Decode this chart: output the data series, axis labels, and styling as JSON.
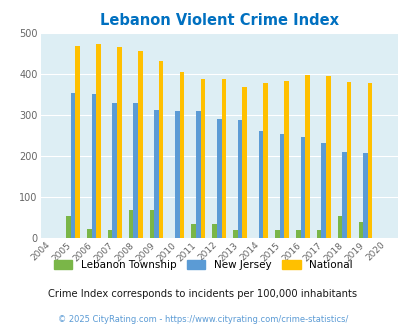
{
  "title": "Lebanon Violent Crime Index",
  "years": [
    2004,
    2005,
    2006,
    2007,
    2008,
    2009,
    2010,
    2011,
    2012,
    2013,
    2014,
    2015,
    2016,
    2017,
    2018,
    2019,
    2020
  ],
  "lebanon": [
    0,
    52,
    20,
    18,
    68,
    68,
    0,
    33,
    33,
    18,
    0,
    18,
    18,
    18,
    52,
    38,
    0
  ],
  "new_jersey": [
    0,
    354,
    350,
    328,
    329,
    311,
    309,
    309,
    291,
    287,
    260,
    254,
    247,
    230,
    210,
    207,
    0
  ],
  "national": [
    0,
    469,
    474,
    467,
    455,
    432,
    405,
    387,
    387,
    368,
    377,
    383,
    397,
    394,
    380,
    379,
    0
  ],
  "lebanon_color": "#7ab648",
  "nj_color": "#5b9bd5",
  "national_color": "#ffc000",
  "bg_color": "#ddeef4",
  "title_color": "#0070c0",
  "subtitle": "Crime Index corresponds to incidents per 100,000 inhabitants",
  "footer": "© 2025 CityRating.com - https://www.cityrating.com/crime-statistics/",
  "ylim": [
    0,
    500
  ],
  "yticks": [
    0,
    100,
    200,
    300,
    400,
    500
  ],
  "grid_color": "#c8dce4"
}
